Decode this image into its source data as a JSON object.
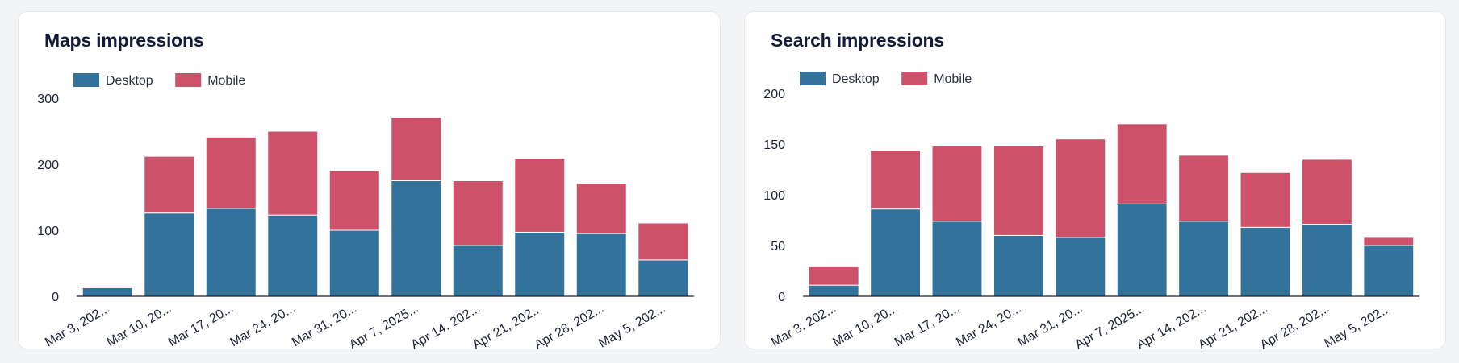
{
  "colors": {
    "desktop": "#33739b",
    "mobile": "#cd516a",
    "axis": "#1b2233"
  },
  "chart_data": [
    {
      "type": "bar",
      "stacked": true,
      "title": "Maps impressions",
      "xlabel": "",
      "ylabel": "",
      "categories": [
        "Mar 3, 202...",
        "Mar 10, 20...",
        "Mar 17, 20...",
        "Mar 24, 20...",
        "Mar 31, 20...",
        "Apr 7, 2025...",
        "Apr 14, 202...",
        "Apr 21, 202...",
        "Apr 28, 202...",
        "May 5, 202..."
      ],
      "series": [
        {
          "name": "Desktop",
          "values": [
            13,
            126,
            133,
            123,
            100,
            175,
            77,
            97,
            95,
            55
          ]
        },
        {
          "name": "Mobile",
          "values": [
            2,
            86,
            108,
            127,
            90,
            96,
            98,
            112,
            76,
            56
          ]
        }
      ],
      "ylim": [
        0,
        300
      ],
      "yticks": [
        "0",
        "100",
        "200",
        "300"
      ],
      "legend": "top-left",
      "grid": false
    },
    {
      "type": "bar",
      "stacked": true,
      "title": "Search impressions",
      "xlabel": "",
      "ylabel": "",
      "categories": [
        "Mar 3, 202...",
        "Mar 10, 20...",
        "Mar 17, 20...",
        "Mar 24, 20...",
        "Mar 31, 20...",
        "Apr 7, 2025...",
        "Apr 14, 202...",
        "Apr 21, 202...",
        "Apr 28, 202...",
        "May 5, 202..."
      ],
      "series": [
        {
          "name": "Desktop",
          "values": [
            11,
            86,
            74,
            60,
            58,
            91,
            74,
            68,
            71,
            50
          ]
        },
        {
          "name": "Mobile",
          "values": [
            18,
            58,
            74,
            88,
            97,
            79,
            65,
            54,
            64,
            8
          ]
        }
      ],
      "ylim": [
        0,
        200
      ],
      "yticks": [
        "0",
        "50",
        "100",
        "150",
        "200"
      ],
      "legend": "top-left",
      "grid": false
    }
  ]
}
